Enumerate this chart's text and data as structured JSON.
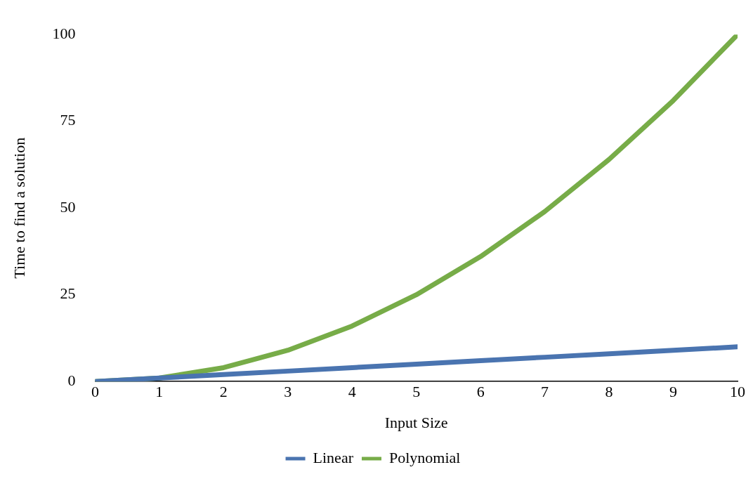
{
  "chart_data": {
    "type": "line",
    "xlabel": "Input Size",
    "ylabel": "Time to find a solution",
    "x": [
      0,
      1,
      2,
      3,
      4,
      5,
      6,
      7,
      8,
      9,
      10
    ],
    "series": [
      {
        "name": "Linear",
        "color": "#4a74b0",
        "values": [
          0,
          1,
          2,
          3,
          4,
          5,
          6,
          7,
          8,
          9,
          10
        ]
      },
      {
        "name": "Polynomial",
        "color": "#77ac48",
        "values": [
          0,
          1,
          4,
          9,
          16,
          25,
          36,
          49,
          64,
          81,
          100
        ]
      }
    ],
    "xlim": [
      0,
      10
    ],
    "xticks": [
      0,
      1,
      2,
      3,
      4,
      5,
      6,
      7,
      8,
      9,
      10
    ],
    "ylim": [
      0,
      100
    ],
    "yticks": [
      0,
      25,
      50,
      75,
      100
    ],
    "grid": false,
    "legend": "bottom",
    "marker": "none",
    "line_style": "solid"
  }
}
